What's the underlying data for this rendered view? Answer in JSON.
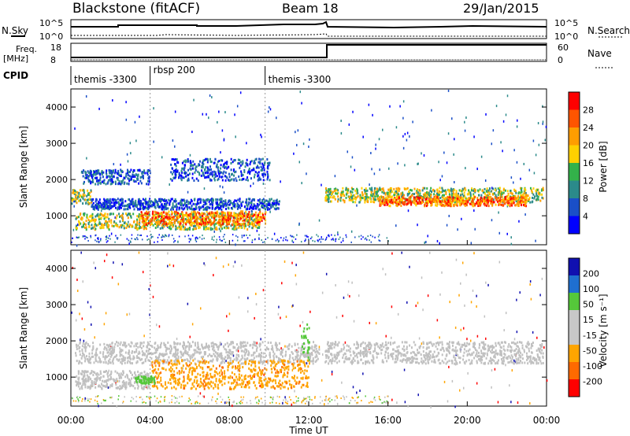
{
  "header": {
    "station": "Blackstone (fitACF)",
    "beam": "Beam 18",
    "date": "29/Jan/2015"
  },
  "noise_panel": {
    "left_label": "N.Sky",
    "right_label": "N.Search",
    "left_ticks": [
      "10^5",
      "10^0"
    ],
    "right_ticks": [
      "10^5",
      "10^0"
    ]
  },
  "freq_panel": {
    "left_label_1": "Freq.",
    "left_label_2": "[MHz]",
    "right_label": "Nave",
    "left_ticks": [
      "18",
      "8"
    ],
    "right_ticks": [
      "60",
      "0"
    ]
  },
  "cpid": {
    "label": "CPID",
    "segments": [
      {
        "text": "themis -3300",
        "start_hour": 0.0
      },
      {
        "text": "rbsp 200",
        "start_hour": 4.0
      },
      {
        "text": "themis -3300",
        "start_hour": 9.8
      }
    ]
  },
  "colors": {
    "power_scale": [
      "#0000ff",
      "#1a4fc8",
      "#2b8a8a",
      "#33b24a",
      "#ffd000",
      "#ff9d00",
      "#ff5500",
      "#ff0000"
    ],
    "velocity_scale": [
      "#1010b0",
      "#1f6fd0",
      "#55c83a",
      "#c8c8c8",
      "#c8c8c8",
      "#ffa500",
      "#ff6a00",
      "#ff0000"
    ],
    "scatter_gray": "#c0c0c0"
  },
  "chart_data": [
    {
      "type": "heatmap",
      "name": "power",
      "ylabel": "Slant Range [km]",
      "ylim": [
        200,
        4500
      ],
      "xlim": [
        0,
        24
      ],
      "yticks": [
        "1000",
        "2000",
        "3000",
        "4000"
      ],
      "colorbar_label": "Power [dB]",
      "colorbar_ticks": [
        "28",
        "24",
        "20",
        "16",
        "12",
        "8",
        "4"
      ],
      "bands": [
        {
          "x": [
            0.2,
            9.5
          ],
          "y": [
            650,
            1100
          ],
          "level": "mid"
        },
        {
          "x": [
            3.5,
            9.8
          ],
          "y": [
            780,
            1150
          ],
          "level": "high"
        },
        {
          "x": [
            0.0,
            1.0
          ],
          "y": [
            1350,
            1750
          ],
          "level": "mid"
        },
        {
          "x": [
            1.0,
            10.5
          ],
          "y": [
            1200,
            1500
          ],
          "level": "low"
        },
        {
          "x": [
            0.5,
            4.0
          ],
          "y": [
            1900,
            2300
          ],
          "level": "low"
        },
        {
          "x": [
            5.0,
            10.0
          ],
          "y": [
            2000,
            2600
          ],
          "level": "low"
        },
        {
          "x": [
            12.8,
            23.8
          ],
          "y": [
            1400,
            1800
          ],
          "level": "mid"
        },
        {
          "x": [
            15.5,
            23.0
          ],
          "y": [
            1300,
            1550
          ],
          "level": "high"
        }
      ]
    },
    {
      "type": "heatmap",
      "name": "velocity",
      "ylabel": "Slant Range [km]",
      "xlabel": "Time UT",
      "ylim": [
        200,
        4500
      ],
      "xlim": [
        0,
        24
      ],
      "yticks": [
        "1000",
        "2000",
        "3000",
        "4000"
      ],
      "xticks": [
        "00:00",
        "04:00",
        "08:00",
        "12:00",
        "16:00",
        "20:00",
        "00:00"
      ],
      "colorbar_label": "Velocity [m s⁻¹]",
      "colorbar_ticks": [
        "200",
        "100",
        "50",
        "15",
        "-15",
        "-50",
        "-100",
        "-200"
      ],
      "bands": [
        {
          "x": [
            0.2,
            12.5
          ],
          "y": [
            1400,
            2000
          ],
          "v": "gray"
        },
        {
          "x": [
            0.2,
            4.0
          ],
          "y": [
            700,
            1200
          ],
          "v": "gray"
        },
        {
          "x": [
            4.0,
            12.0
          ],
          "y": [
            700,
            1500
          ],
          "v": "orange"
        },
        {
          "x": [
            3.2,
            4.2
          ],
          "y": [
            850,
            1050
          ],
          "v": "green"
        },
        {
          "x": [
            11.6,
            12.0
          ],
          "y": [
            1500,
            2500
          ],
          "v": "green"
        },
        {
          "x": [
            12.8,
            23.8
          ],
          "y": [
            1400,
            2000
          ],
          "v": "gray"
        }
      ]
    }
  ]
}
